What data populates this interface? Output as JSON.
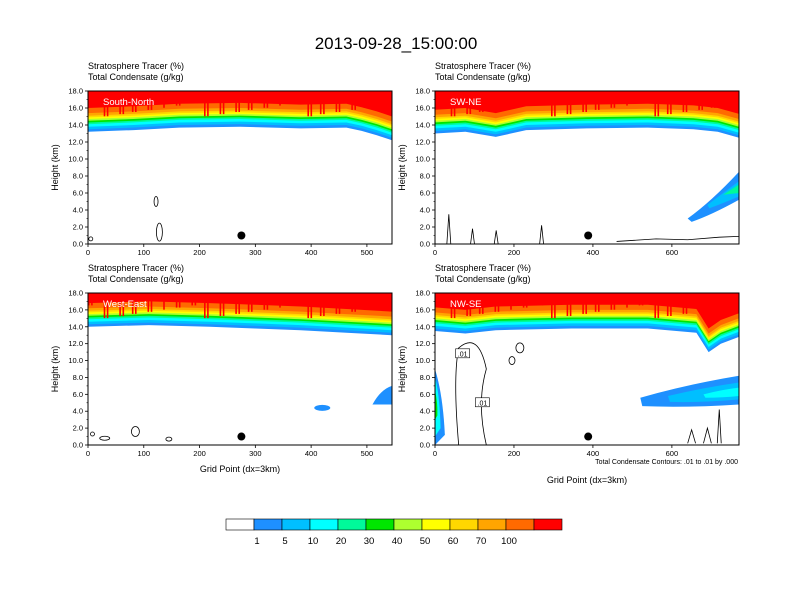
{
  "title": "2013-09-28_15:00:00",
  "colors": {
    "levels": [
      "#ffffff",
      "#1e90ff",
      "#00bfff",
      "#00ffff",
      "#00fa9a",
      "#00e600",
      "#adff2f",
      "#ffff00",
      "#ffd700",
      "#ffa500",
      "#ff6a00",
      "#ff0000"
    ]
  },
  "colorbar": {
    "ticks": [
      "1",
      "5",
      "10",
      "20",
      "30",
      "40",
      "50",
      "60",
      "70",
      "100"
    ]
  },
  "contour_note": "Total Condensate Contours: .01 to .01 by .000",
  "contour_label": ".01",
  "chart_data": [
    {
      "type": "contour",
      "panel": "South-North",
      "header_line1": "Stratosphere Tracer   (%)",
      "header_line2": "Total Condensate   (g/kg)",
      "xlim": [
        0,
        545
      ],
      "ylim": [
        0,
        18
      ],
      "xticks": [
        "0",
        "100",
        "200",
        "300",
        "400",
        "500"
      ],
      "xtick_values": [
        0,
        100,
        200,
        300,
        400,
        500
      ],
      "yticks": [
        "0.0",
        "2.0",
        "4.0",
        "6.0",
        "8.0",
        "10.0",
        "12.0",
        "14.0",
        "16.0",
        "18.0"
      ],
      "ylabel": "Height (km)",
      "xlabel": "",
      "marker_x": 275,
      "marker_y": 1.0
    },
    {
      "type": "contour",
      "panel": "SW-NE",
      "header_line1": "Stratosphere Tracer   (%)",
      "header_line2": "Total Condensate   (g/kg)",
      "xlim": [
        0,
        770
      ],
      "ylim": [
        0,
        18
      ],
      "xticks": [
        "0",
        "200",
        "400",
        "600"
      ],
      "xtick_values": [
        0,
        200,
        400,
        600
      ],
      "yticks": [
        "0.0",
        "2.0",
        "4.0",
        "6.0",
        "8.0",
        "10.0",
        "12.0",
        "14.0",
        "16.0",
        "18.0"
      ],
      "ylabel": "Height (km)",
      "xlabel": "",
      "marker_x": 388,
      "marker_y": 1.0
    },
    {
      "type": "contour",
      "panel": "West-East",
      "header_line1": "Stratosphere Tracer   (%)",
      "header_line2": "Total Condensate   (g/kg)",
      "xlim": [
        0,
        545
      ],
      "ylim": [
        0,
        18
      ],
      "xticks": [
        "0",
        "100",
        "200",
        "300",
        "400",
        "500"
      ],
      "xtick_values": [
        0,
        100,
        200,
        300,
        400,
        500
      ],
      "yticks": [
        "0.0",
        "2.0",
        "4.0",
        "6.0",
        "8.0",
        "10.0",
        "12.0",
        "14.0",
        "16.0",
        "18.0"
      ],
      "ylabel": "Height (km)",
      "xlabel": "Grid Point (dx=3km)",
      "marker_x": 275,
      "marker_y": 1.0
    },
    {
      "type": "contour",
      "panel": "NW-SE",
      "header_line1": "Stratosphere Tracer   (%)",
      "header_line2": "Total Condensate   (g/kg)",
      "xlim": [
        0,
        770
      ],
      "ylim": [
        0,
        18
      ],
      "xticks": [
        "0",
        "200",
        "400",
        "600"
      ],
      "xtick_values": [
        0,
        200,
        400,
        600
      ],
      "yticks": [
        "0.0",
        "2.0",
        "4.0",
        "6.0",
        "8.0",
        "10.0",
        "12.0",
        "14.0",
        "16.0",
        "18.0"
      ],
      "ylabel": "Height (km)",
      "xlabel": "Grid Point (dx=3km)",
      "marker_x": 388,
      "marker_y": 1.0
    }
  ]
}
